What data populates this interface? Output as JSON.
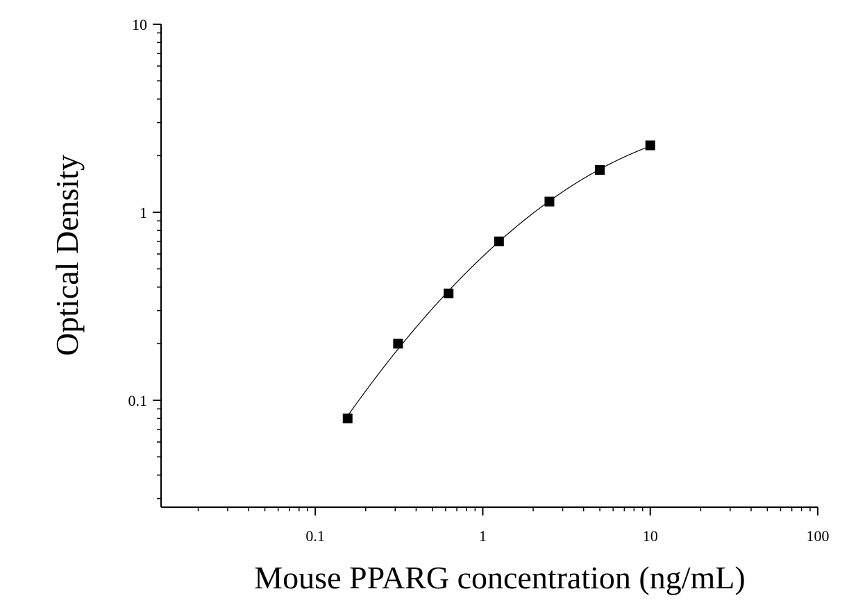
{
  "chart_data": {
    "type": "scatter",
    "xlabel": "Mouse PPARG concentration (ng/mL)",
    "ylabel": "Optical Density",
    "x_scale": "log",
    "y_scale": "log",
    "xlim": [
      0.012,
      100
    ],
    "ylim": [
      0.027,
      10
    ],
    "x_ticks": [
      {
        "value": 0.1,
        "label": "0.1"
      },
      {
        "value": 1,
        "label": "1"
      },
      {
        "value": 10,
        "label": "10"
      },
      {
        "value": 100,
        "label": "100"
      }
    ],
    "y_ticks": [
      {
        "value": 0.1,
        "label": "0.1"
      },
      {
        "value": 1,
        "label": "1"
      },
      {
        "value": 10,
        "label": "10"
      }
    ],
    "grid": false,
    "series": [
      {
        "x": [
          0.156,
          0.312,
          0.625,
          1.25,
          2.5,
          5,
          10
        ],
        "y": [
          0.08,
          0.2,
          0.37,
          0.7,
          1.14,
          1.68,
          2.27
        ],
        "marker": "square",
        "color": "#000000",
        "fit_curve": true
      }
    ]
  }
}
